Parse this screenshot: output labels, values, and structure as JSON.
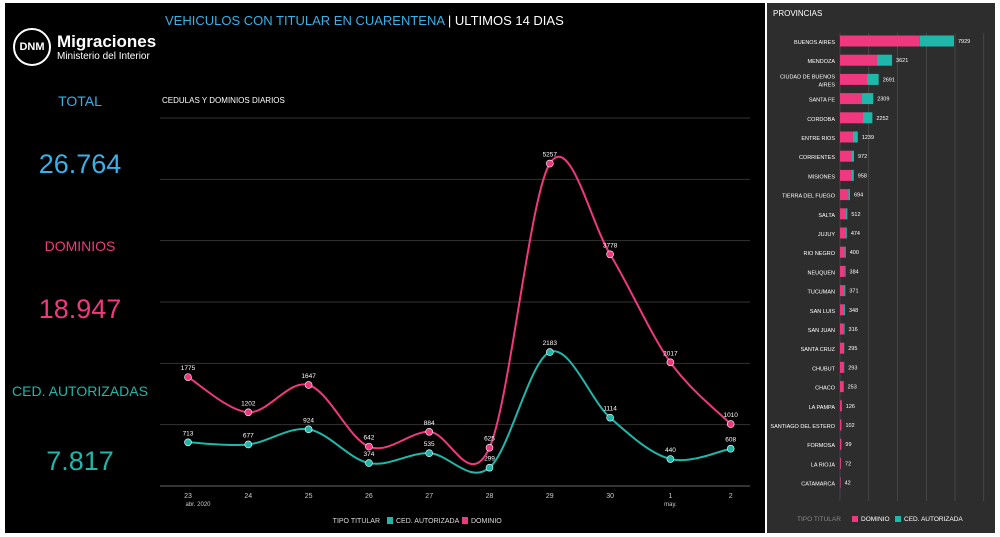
{
  "logo": {
    "mark": "DNM",
    "name": "Migraciones",
    "sub": "Ministerio del Interior"
  },
  "header": {
    "title_a": "VEHICULOS CON TITULAR EN CUARENTENA",
    "sep": " | ",
    "title_b": "ULTIMOS 14 DIAS"
  },
  "kpis": [
    {
      "label": "TOTAL",
      "value": "26.764",
      "color": "#3ab0e8"
    },
    {
      "label": "DOMINIOS",
      "value": "18.947",
      "color": "#f0387f"
    },
    {
      "label": "CED. AUTORIZADAS",
      "value": "7.817",
      "color": "#1fb7aa"
    }
  ],
  "colors": {
    "dominio": "#f0387f",
    "ced": "#1fb7aa"
  },
  "chart_data": [
    {
      "type": "line",
      "title": "CEDULAS Y DOMINIOS DIARIOS",
      "categories": [
        "23",
        "24",
        "25",
        "26",
        "27",
        "28",
        "29",
        "30",
        "1",
        "2"
      ],
      "sublabels": [
        "abr. 2020",
        "",
        "",
        "",
        "",
        "",
        "",
        "",
        "may.",
        ""
      ],
      "ylim": [
        0,
        6000
      ],
      "grid": true,
      "legend": {
        "title": "TIPO TITULAR",
        "position": "bottom"
      },
      "series": [
        {
          "name": "CED. AUTORIZADA",
          "values": [
            713,
            677,
            924,
            374,
            535,
            299,
            2183,
            1114,
            440,
            608
          ]
        },
        {
          "name": "DOMINIO",
          "values": [
            1775,
            1202,
            1647,
            642,
            884,
            625,
            5257,
            3778,
            2017,
            1010
          ]
        }
      ]
    },
    {
      "type": "bar",
      "stacked": true,
      "orientation": "horizontal",
      "title": "PROVINCIAS",
      "legend": {
        "title": "TIPO TITULAR",
        "position": "bottom"
      },
      "categories": [
        "BUENOS AIRES",
        "MENDOZA",
        "CIUDAD DE BUENOS AIRES",
        "SANTA FE",
        "CORDOBA",
        "ENTRE RIOS",
        "CORRIENTES",
        "MISIONES",
        "TIERRA DEL FUEGO",
        "SALTA",
        "JUJUY",
        "RIO NEGRO",
        "NEUQUEN",
        "TUCUMAN",
        "SAN LUIS",
        "SAN JUAN",
        "SANTA CRUZ",
        "CHUBUT",
        "CHACO",
        "LA PAMPA",
        "SANTIAGO DEL ESTERO",
        "FORMOSA",
        "LA RIOJA",
        "CATAMARCA"
      ],
      "totals": [
        7929,
        3621,
        2691,
        2309,
        2252,
        1239,
        972,
        958,
        694,
        512,
        474,
        400,
        384,
        371,
        348,
        316,
        295,
        293,
        253,
        126,
        102,
        99,
        72,
        42
      ],
      "series": [
        {
          "name": "DOMINIO",
          "values": [
            5560,
            2570,
            1880,
            1530,
            1600,
            900,
            800,
            790,
            580,
            420,
            390,
            320,
            330,
            300,
            290,
            270,
            250,
            260,
            210,
            100,
            80,
            90,
            60,
            35
          ]
        },
        {
          "name": "CED. AUTORIZADA",
          "values": [
            2369,
            1051,
            811,
            779,
            652,
            339,
            172,
            168,
            114,
            92,
            84,
            80,
            54,
            71,
            58,
            46,
            45,
            33,
            43,
            26,
            22,
            9,
            12,
            7
          ]
        }
      ]
    }
  ]
}
